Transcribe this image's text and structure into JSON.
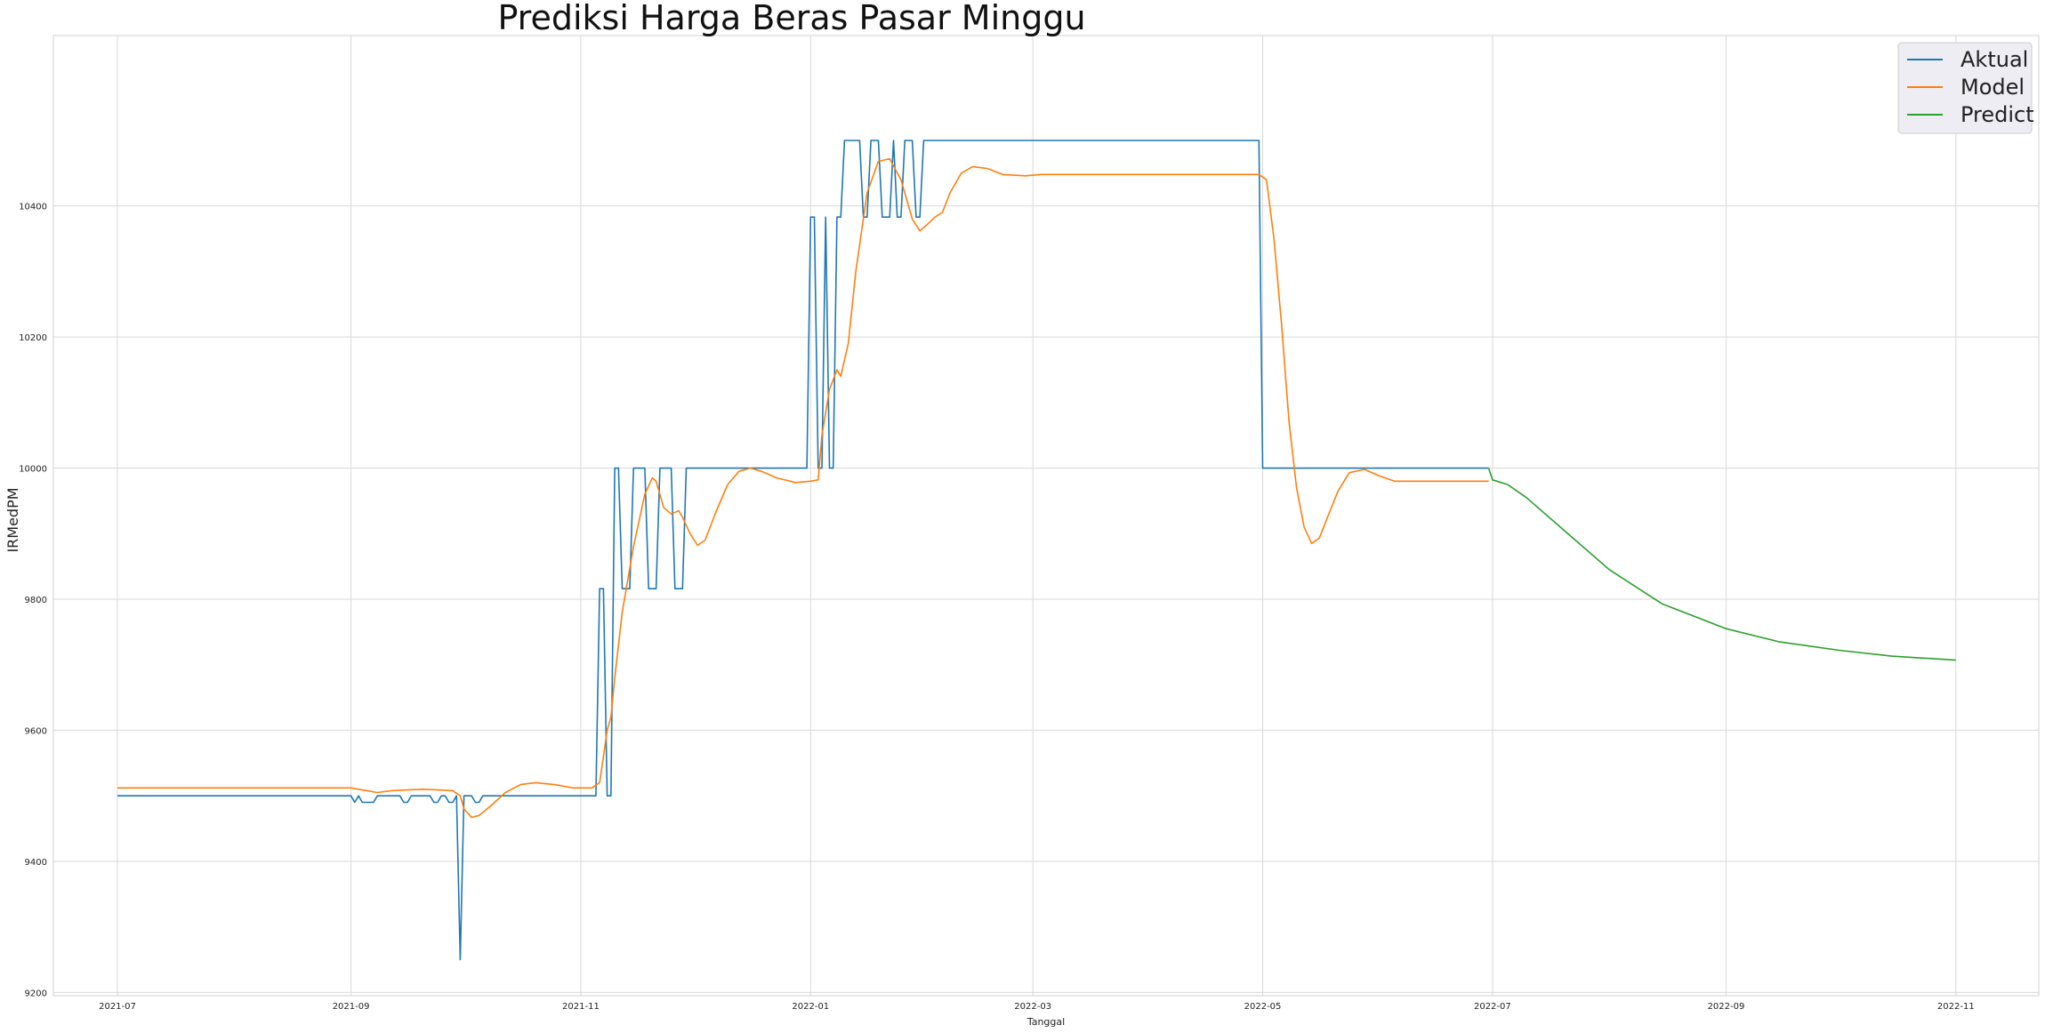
{
  "chart_data": {
    "type": "line",
    "title": "Prediksi Harga Beras Pasar Minggu",
    "xlabel": "Tanggal",
    "ylabel": "IRMedPM",
    "x_range": [
      "2021-06-14",
      "2022-11-23"
    ],
    "ylim": [
      9195,
      10660
    ],
    "grid": true,
    "legend_position": "top-right",
    "x_ticks": [
      "2021-07",
      "2021-09",
      "2021-11",
      "2022-01",
      "2022-03",
      "2022-05",
      "2022-07",
      "2022-09",
      "2022-11"
    ],
    "y_ticks": [
      9200,
      9400,
      9600,
      9800,
      10000,
      10200,
      10400
    ],
    "series": [
      {
        "name": "Aktual",
        "color": "#1f77b4",
        "points": [
          [
            "2021-07-01",
            9500
          ],
          [
            "2021-09-01",
            9500
          ],
          [
            "2021-09-02",
            9490
          ],
          [
            "2021-09-03",
            9500
          ],
          [
            "2021-09-04",
            9490
          ],
          [
            "2021-09-07",
            9490
          ],
          [
            "2021-09-08",
            9500
          ],
          [
            "2021-09-14",
            9500
          ],
          [
            "2021-09-15",
            9490
          ],
          [
            "2021-09-16",
            9490
          ],
          [
            "2021-09-17",
            9500
          ],
          [
            "2021-09-22",
            9500
          ],
          [
            "2021-09-23",
            9490
          ],
          [
            "2021-09-24",
            9490
          ],
          [
            "2021-09-25",
            9500
          ],
          [
            "2021-09-26",
            9500
          ],
          [
            "2021-09-27",
            9490
          ],
          [
            "2021-09-28",
            9490
          ],
          [
            "2021-09-29",
            9500
          ],
          [
            "2021-09-30",
            9250
          ],
          [
            "2021-10-01",
            9500
          ],
          [
            "2021-10-03",
            9500
          ],
          [
            "2021-10-04",
            9490
          ],
          [
            "2021-10-05",
            9490
          ],
          [
            "2021-10-06",
            9500
          ],
          [
            "2021-11-05",
            9500
          ],
          [
            "2021-11-06",
            9816
          ],
          [
            "2021-11-07",
            9816
          ],
          [
            "2021-11-08",
            9500
          ],
          [
            "2021-11-09",
            9500
          ],
          [
            "2021-11-10",
            10000
          ],
          [
            "2021-11-11",
            10000
          ],
          [
            "2021-11-12",
            9816
          ],
          [
            "2021-11-14",
            9816
          ],
          [
            "2021-11-15",
            10000
          ],
          [
            "2021-11-18",
            10000
          ],
          [
            "2021-11-19",
            9816
          ],
          [
            "2021-11-21",
            9816
          ],
          [
            "2021-11-22",
            10000
          ],
          [
            "2021-11-25",
            10000
          ],
          [
            "2021-11-26",
            9816
          ],
          [
            "2021-11-28",
            9816
          ],
          [
            "2021-11-29",
            10000
          ],
          [
            "2021-12-31",
            10000
          ],
          [
            "2022-01-01",
            10383
          ],
          [
            "2022-01-02",
            10383
          ],
          [
            "2022-01-03",
            10000
          ],
          [
            "2022-01-04",
            10000
          ],
          [
            "2022-01-05",
            10383
          ],
          [
            "2022-01-06",
            10000
          ],
          [
            "2022-01-07",
            10000
          ],
          [
            "2022-01-08",
            10383
          ],
          [
            "2022-01-09",
            10383
          ],
          [
            "2022-01-10",
            10500
          ],
          [
            "2022-01-14",
            10500
          ],
          [
            "2022-01-15",
            10383
          ],
          [
            "2022-01-16",
            10383
          ],
          [
            "2022-01-17",
            10500
          ],
          [
            "2022-01-19",
            10500
          ],
          [
            "2022-01-20",
            10383
          ],
          [
            "2022-01-22",
            10383
          ],
          [
            "2022-01-23",
            10500
          ],
          [
            "2022-01-24",
            10383
          ],
          [
            "2022-01-25",
            10383
          ],
          [
            "2022-01-26",
            10500
          ],
          [
            "2022-01-28",
            10500
          ],
          [
            "2022-01-29",
            10383
          ],
          [
            "2022-01-30",
            10383
          ],
          [
            "2022-01-31",
            10500
          ],
          [
            "2022-04-30",
            10500
          ],
          [
            "2022-05-01",
            10000
          ],
          [
            "2022-06-30",
            10000
          ]
        ]
      },
      {
        "name": "Model",
        "color": "#ff7f0e",
        "points": [
          [
            "2021-07-01",
            9512
          ],
          [
            "2021-09-01",
            9512
          ],
          [
            "2021-09-05",
            9508
          ],
          [
            "2021-09-08",
            9505
          ],
          [
            "2021-09-12",
            9508
          ],
          [
            "2021-09-20",
            9510
          ],
          [
            "2021-09-28",
            9508
          ],
          [
            "2021-09-30",
            9500
          ],
          [
            "2021-10-01",
            9480
          ],
          [
            "2021-10-03",
            9467
          ],
          [
            "2021-10-05",
            9470
          ],
          [
            "2021-10-08",
            9484
          ],
          [
            "2021-10-12",
            9505
          ],
          [
            "2021-10-16",
            9517
          ],
          [
            "2021-10-20",
            9520
          ],
          [
            "2021-10-25",
            9517
          ],
          [
            "2021-10-30",
            9512
          ],
          [
            "2021-11-04",
            9512
          ],
          [
            "2021-11-06",
            9520
          ],
          [
            "2021-11-07",
            9560
          ],
          [
            "2021-11-08",
            9600
          ],
          [
            "2021-11-09",
            9620
          ],
          [
            "2021-11-10",
            9680
          ],
          [
            "2021-11-12",
            9780
          ],
          [
            "2021-11-15",
            9880
          ],
          [
            "2021-11-18",
            9960
          ],
          [
            "2021-11-20",
            9985
          ],
          [
            "2021-11-21",
            9980
          ],
          [
            "2021-11-23",
            9940
          ],
          [
            "2021-11-25",
            9930
          ],
          [
            "2021-11-27",
            9935
          ],
          [
            "2021-11-28",
            9925
          ],
          [
            "2021-11-30",
            9900
          ],
          [
            "2021-12-02",
            9882
          ],
          [
            "2021-12-04",
            9890
          ],
          [
            "2021-12-07",
            9935
          ],
          [
            "2021-12-10",
            9975
          ],
          [
            "2021-12-13",
            9995
          ],
          [
            "2021-12-16",
            10000
          ],
          [
            "2021-12-19",
            9995
          ],
          [
            "2021-12-23",
            9985
          ],
          [
            "2021-12-28",
            9978
          ],
          [
            "2022-01-01",
            9980
          ],
          [
            "2022-01-03",
            9982
          ],
          [
            "2022-01-04",
            10050
          ],
          [
            "2022-01-06",
            10120
          ],
          [
            "2022-01-08",
            10150
          ],
          [
            "2022-01-09",
            10140
          ],
          [
            "2022-01-11",
            10190
          ],
          [
            "2022-01-13",
            10300
          ],
          [
            "2022-01-16",
            10420
          ],
          [
            "2022-01-19",
            10468
          ],
          [
            "2022-01-22",
            10472
          ],
          [
            "2022-01-25",
            10440
          ],
          [
            "2022-01-28",
            10380
          ],
          [
            "2022-01-30",
            10362
          ],
          [
            "2022-02-01",
            10372
          ],
          [
            "2022-02-03",
            10383
          ],
          [
            "2022-02-05",
            10390
          ],
          [
            "2022-02-07",
            10420
          ],
          [
            "2022-02-10",
            10450
          ],
          [
            "2022-02-13",
            10460
          ],
          [
            "2022-02-17",
            10457
          ],
          [
            "2022-02-21",
            10448
          ],
          [
            "2022-02-27",
            10446
          ],
          [
            "2022-03-03",
            10448
          ],
          [
            "2022-04-30",
            10448
          ],
          [
            "2022-05-02",
            10440
          ],
          [
            "2022-05-04",
            10350
          ],
          [
            "2022-05-06",
            10220
          ],
          [
            "2022-05-08",
            10070
          ],
          [
            "2022-05-10",
            9970
          ],
          [
            "2022-05-12",
            9910
          ],
          [
            "2022-05-14",
            9885
          ],
          [
            "2022-05-16",
            9893
          ],
          [
            "2022-05-18",
            9922
          ],
          [
            "2022-05-21",
            9965
          ],
          [
            "2022-05-24",
            9993
          ],
          [
            "2022-05-28",
            9998
          ],
          [
            "2022-06-01",
            9988
          ],
          [
            "2022-06-05",
            9980
          ],
          [
            "2022-06-30",
            9980
          ]
        ]
      },
      {
        "name": "Predict",
        "color": "#2ca02c",
        "points": [
          [
            "2022-06-30",
            10000
          ],
          [
            "2022-07-01",
            9982
          ],
          [
            "2022-07-05",
            9975
          ],
          [
            "2022-07-10",
            9955
          ],
          [
            "2022-07-20",
            9905
          ],
          [
            "2022-08-01",
            9845
          ],
          [
            "2022-08-15",
            9793
          ],
          [
            "2022-09-01",
            9755
          ],
          [
            "2022-09-15",
            9735
          ],
          [
            "2022-10-01",
            9722
          ],
          [
            "2022-10-15",
            9713
          ],
          [
            "2022-11-01",
            9707
          ]
        ]
      }
    ]
  }
}
